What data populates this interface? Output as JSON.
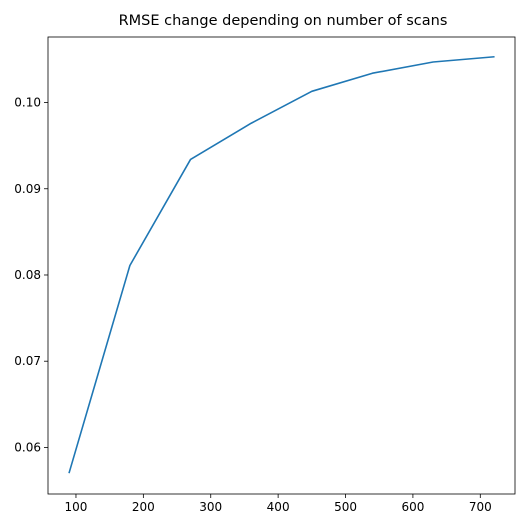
{
  "chart_data": {
    "type": "line",
    "title": "RMSE change depending on number of scans",
    "xlabel": "",
    "ylabel": "",
    "xlim": [
      58.5,
      751.5
    ],
    "ylim": [
      0.0546,
      0.1076
    ],
    "xticks": [
      100,
      200,
      300,
      400,
      500,
      600,
      700
    ],
    "xtick_labels": [
      "100",
      "200",
      "300",
      "400",
      "500",
      "600",
      "700"
    ],
    "yticks": [
      0.06,
      0.07,
      0.08,
      0.09,
      0.1
    ],
    "ytick_labels": [
      "0.06",
      "0.07",
      "0.08",
      "0.09",
      "0.10"
    ],
    "grid": false,
    "series": [
      {
        "color": "#1f77b4",
        "x": [
          90,
          180,
          270,
          360,
          450,
          540,
          630,
          720
        ],
        "y": [
          0.0571,
          0.0811,
          0.0934,
          0.0976,
          0.1013,
          0.1034,
          0.1047,
          0.1053
        ]
      }
    ]
  }
}
